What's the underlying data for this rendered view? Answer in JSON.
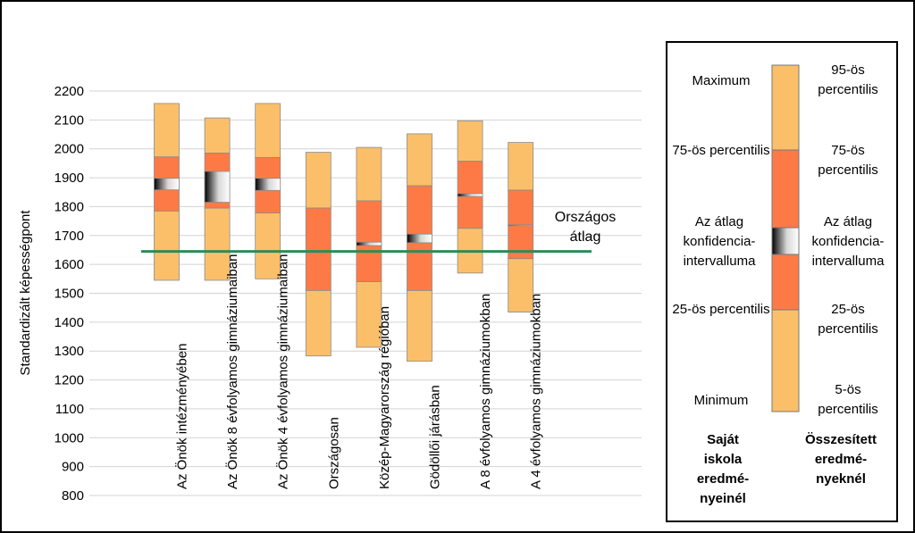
{
  "chart_data": {
    "type": "box",
    "ylabel": "Standardizált képességpont",
    "ylim": [
      800,
      2200
    ],
    "ytick_step": 100,
    "grid": true,
    "reference_line": {
      "label_line1": "Országos",
      "label_line2": "átlag",
      "value": 1645,
      "color": "#2e8b57"
    },
    "colors": {
      "outer": "#fbbf6a",
      "inner": "#fd7a47",
      "ci": "gradient-gray"
    },
    "categories": [
      {
        "label": "Az Önök intézményében",
        "min": 1545,
        "q1": 1785,
        "q3": 1972,
        "max": 2157,
        "ci_low": 1858,
        "ci_high": 1898
      },
      {
        "label": "Az Önök 8 évfolyamos gimnáziumaiban",
        "min": 1545,
        "q1": 1795,
        "q3": 1985,
        "max": 2107,
        "ci_low": 1815,
        "ci_high": 1922
      },
      {
        "label": "Az Önök 4 évfolyamos gimnáziumaiban",
        "min": 1550,
        "q1": 1778,
        "q3": 1970,
        "max": 2157,
        "ci_low": 1856,
        "ci_high": 1898
      },
      {
        "label": "Országosan",
        "min": 1283,
        "q1": 1510,
        "q3": 1795,
        "max": 1988,
        "ci_low": 1645,
        "ci_high": 1648
      },
      {
        "label": "Közép-Magyarország régióban",
        "min": 1313,
        "q1": 1540,
        "q3": 1820,
        "max": 2005,
        "ci_low": 1665,
        "ci_high": 1677
      },
      {
        "label": "Gödöllői járásban",
        "min": 1265,
        "q1": 1510,
        "q3": 1872,
        "max": 2052,
        "ci_low": 1675,
        "ci_high": 1705
      },
      {
        "label": "A 8 évfolyamos gimnáziumokban",
        "min": 1570,
        "q1": 1725,
        "q3": 1957,
        "max": 2097,
        "ci_low": 1835,
        "ci_high": 1845
      },
      {
        "label": "A 4 évfolyamos gimnáziumokban",
        "min": 1435,
        "q1": 1620,
        "q3": 1857,
        "max": 2022,
        "ci_low": 1735,
        "ci_high": 1737
      }
    ]
  },
  "legend": {
    "left_labels": [
      "Maximum",
      "75-ös percentilis",
      "Az átlag konfidencia-intervalluma",
      "25-ös percentilis",
      "Minimum"
    ],
    "right_labels": [
      "95-ös percentilis",
      "75-ös percentilis",
      "Az átlag konfidencia-intervalluma",
      "25-ös percentilis",
      "5-ös percentilis"
    ],
    "left_header": "Saját iskola eredmé-nyeinél",
    "right_header": "Összesített eredmé-nyeknél"
  }
}
